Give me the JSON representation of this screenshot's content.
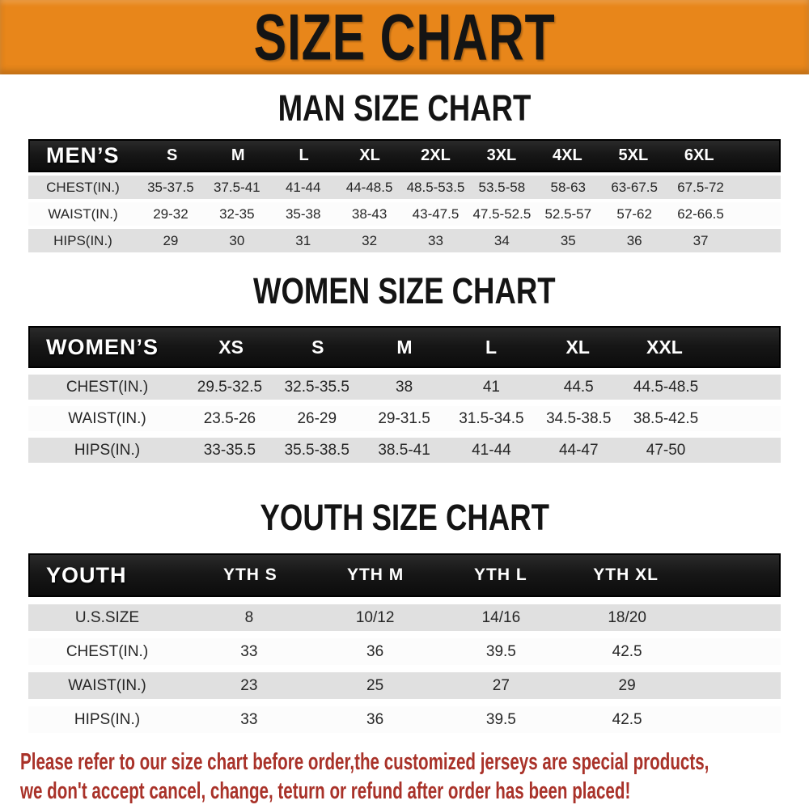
{
  "banner": {
    "title": "SIZE CHART"
  },
  "colors": {
    "banner_orange": "#E8861A",
    "heading_black": "#141414",
    "header_bar": "#171717",
    "row_gray": "#E0E0E0",
    "row_white": "#FCFCFC",
    "note_red": "#A93229"
  },
  "tables": {
    "men": {
      "heading": "MAN SIZE CHART",
      "header_label": "MEN’S",
      "sizes": [
        "S",
        "M",
        "L",
        "XL",
        "2XL",
        "3XL",
        "4XL",
        "5XL",
        "6XL"
      ],
      "rows": [
        {
          "label": "CHEST(IN.)",
          "values": [
            "35-37.5",
            "37.5-41",
            "41-44",
            "44-48.5",
            "48.5-53.5",
            "53.5-58",
            "58-63",
            "63-67.5",
            "67.5-72"
          ]
        },
        {
          "label": "WAIST(IN.)",
          "values": [
            "29-32",
            "32-35",
            "35-38",
            "38-43",
            "43-47.5",
            "47.5-52.5",
            "52.5-57",
            "57-62",
            "62-66.5"
          ]
        },
        {
          "label": "HIPS(IN.)",
          "values": [
            "29",
            "30",
            "31",
            "32",
            "33",
            "34",
            "35",
            "36",
            "37"
          ]
        }
      ]
    },
    "women": {
      "heading": "WOMEN SIZE CHART",
      "header_label": "WOMEN’S",
      "sizes": [
        "XS",
        "S",
        "M",
        "L",
        "XL",
        "XXL"
      ],
      "rows": [
        {
          "label": "CHEST(IN.)",
          "values": [
            "29.5-32.5",
            "32.5-35.5",
            "38",
            "41",
            "44.5",
            "44.5-48.5"
          ]
        },
        {
          "label": "WAIST(IN.)",
          "values": [
            "23.5-26",
            "26-29",
            "29-31.5",
            "31.5-34.5",
            "34.5-38.5",
            "38.5-42.5"
          ]
        },
        {
          "label": "HIPS(IN.)",
          "values": [
            "33-35.5",
            "35.5-38.5",
            "38.5-41",
            "41-44",
            "44-47",
            "47-50"
          ]
        }
      ]
    },
    "youth": {
      "heading": "YOUTH SIZE CHART",
      "header_label": "YOUTH",
      "sizes": [
        "YTH S",
        "YTH M",
        "YTH L",
        "YTH XL"
      ],
      "rows": [
        {
          "label": "U.S.SIZE",
          "values": [
            "8",
            "10/12",
            "14/16",
            "18/20"
          ]
        },
        {
          "label": "CHEST(IN.)",
          "values": [
            "33",
            "36",
            "39.5",
            "42.5"
          ]
        },
        {
          "label": "WAIST(IN.)",
          "values": [
            "23",
            "25",
            "27",
            "29"
          ]
        },
        {
          "label": "HIPS(IN.)",
          "values": [
            "33",
            "36",
            "39.5",
            "42.5"
          ]
        }
      ]
    }
  },
  "note": {
    "line1": "Please refer to our size chart before order,the customized jerseys are special products,",
    "line2": "we don't accept cancel, change, teturn or refund after order has been placed!"
  }
}
